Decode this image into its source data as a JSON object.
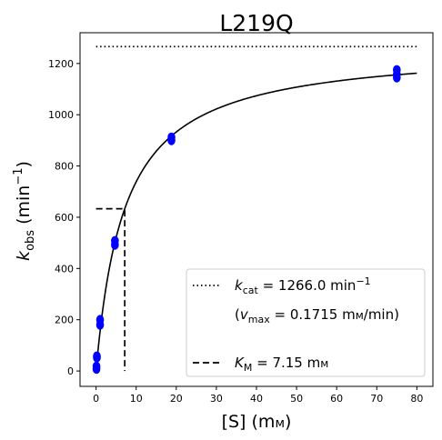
{
  "chart_data": {
    "type": "scatter",
    "title": "L219Q",
    "xlabel": "[S] (mм)",
    "ylabel": "k_obs (min⁻¹)",
    "xlim": [
      -4,
      84
    ],
    "ylim": [
      -60,
      1320
    ],
    "xticks": [
      0,
      10,
      20,
      30,
      40,
      50,
      60,
      70,
      80
    ],
    "yticks": [
      0,
      200,
      400,
      600,
      800,
      1000,
      1200
    ],
    "grid": false,
    "legend_position": "bottom-right",
    "colors": {
      "points": "#0000ff",
      "lines": "#000000"
    },
    "points": [
      {
        "x": 0.1,
        "y": 8
      },
      {
        "x": 0.1,
        "y": 18
      },
      {
        "x": 0.2,
        "y": 52
      },
      {
        "x": 0.2,
        "y": 58
      },
      {
        "x": 1.0,
        "y": 180
      },
      {
        "x": 1.0,
        "y": 200
      },
      {
        "x": 4.7,
        "y": 492
      },
      {
        "x": 4.7,
        "y": 508
      },
      {
        "x": 18.8,
        "y": 900
      },
      {
        "x": 18.8,
        "y": 912
      },
      {
        "x": 75.0,
        "y": 1145
      },
      {
        "x": 75.0,
        "y": 1158
      },
      {
        "x": 75.0,
        "y": 1175
      }
    ],
    "fit": {
      "model": "michaelis-menten",
      "kcat": 1266.0,
      "KM": 7.15,
      "x_range": [
        0,
        80
      ]
    },
    "kcat_line": {
      "y": 1266.0,
      "x_range": [
        0,
        80
      ]
    },
    "km_marker": {
      "x": 7.15,
      "y": 633.0
    },
    "legend": {
      "kcat_label": "k_cat = 1266.0 min⁻¹",
      "vmax_label": "(v_max = 0.1715 mм/min)",
      "km_label": "K_M = 7.15 mм"
    }
  }
}
